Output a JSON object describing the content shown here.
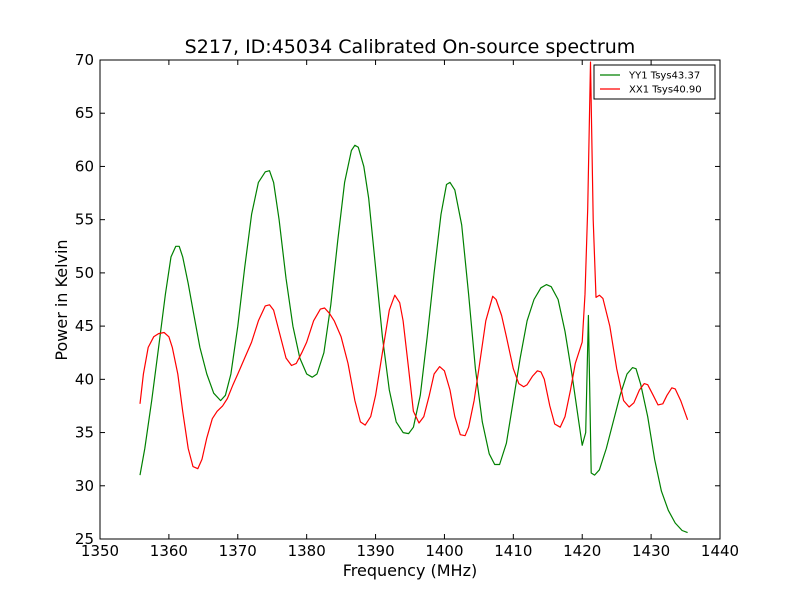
{
  "chart_data": {
    "type": "line",
    "title": "S217, ID:45034 Calibrated On-source spectrum",
    "xlabel": "Frequency (MHz)",
    "ylabel": "Power in Kelvin",
    "xlim": [
      1350,
      1440
    ],
    "ylim": [
      25,
      70
    ],
    "xticks": [
      1350,
      1360,
      1370,
      1380,
      1390,
      1400,
      1410,
      1420,
      1430,
      1440
    ],
    "yticks": [
      25,
      30,
      35,
      40,
      45,
      50,
      55,
      60,
      65,
      70
    ],
    "grid": false,
    "legend_position": "top-right",
    "series": [
      {
        "name": "YY1 Tsys43.37",
        "color": "#008000",
        "x": [
          1355.8,
          1356.5,
          1357.5,
          1358.5,
          1359.5,
          1360.3,
          1361.0,
          1361.5,
          1362.0,
          1362.8,
          1363.5,
          1364.5,
          1365.5,
          1366.5,
          1367.5,
          1368.2,
          1369.0,
          1370.0,
          1371.0,
          1372.0,
          1373.0,
          1374.0,
          1374.6,
          1375.2,
          1376.0,
          1377.0,
          1378.0,
          1379.0,
          1380.0,
          1380.8,
          1381.5,
          1382.5,
          1383.5,
          1384.5,
          1385.5,
          1386.5,
          1387.0,
          1387.5,
          1388.3,
          1389.0,
          1390.0,
          1391.0,
          1392.0,
          1393.0,
          1394.0,
          1394.8,
          1395.5,
          1396.5,
          1397.5,
          1398.5,
          1399.5,
          1400.3,
          1400.8,
          1401.5,
          1402.5,
          1403.5,
          1404.5,
          1405.5,
          1406.5,
          1407.3,
          1408.0,
          1409.0,
          1410.0,
          1411.0,
          1412.0,
          1413.0,
          1414.0,
          1414.8,
          1415.5,
          1416.5,
          1417.5,
          1418.5,
          1419.5,
          1420.0,
          1420.5,
          1420.9,
          1421.3,
          1421.8,
          1422.5,
          1423.5,
          1424.5,
          1425.5,
          1426.5,
          1427.3,
          1427.8,
          1428.5,
          1429.5,
          1430.5,
          1431.5,
          1432.5,
          1433.5,
          1434.5,
          1435.3
        ],
        "values": [
          31.0,
          33.5,
          38.0,
          43.0,
          48.0,
          51.5,
          52.5,
          52.5,
          51.5,
          49.0,
          46.5,
          43.0,
          40.5,
          38.7,
          38.0,
          38.5,
          40.5,
          45.0,
          50.5,
          55.5,
          58.5,
          59.5,
          59.6,
          58.5,
          55.0,
          49.5,
          45.0,
          42.0,
          40.5,
          40.2,
          40.5,
          42.5,
          47.0,
          53.0,
          58.5,
          61.5,
          62.0,
          61.8,
          60.0,
          57.0,
          50.5,
          44.0,
          39.0,
          36.0,
          35.0,
          34.9,
          35.5,
          38.5,
          44.0,
          50.0,
          55.5,
          58.3,
          58.5,
          57.8,
          54.5,
          48.0,
          41.0,
          36.0,
          33.0,
          32.0,
          32.0,
          34.0,
          38.0,
          42.0,
          45.5,
          47.5,
          48.6,
          48.9,
          48.7,
          47.5,
          44.5,
          40.5,
          36.0,
          33.8,
          35.0,
          46.0,
          31.2,
          31.0,
          31.5,
          33.5,
          36.0,
          38.5,
          40.5,
          41.1,
          41.0,
          39.5,
          36.5,
          32.5,
          29.5,
          27.7,
          26.5,
          25.8,
          25.6
        ]
      },
      {
        "name": "XX1 Tsys40.90",
        "color": "#ff0000",
        "x": [
          1355.8,
          1356.3,
          1357.0,
          1357.8,
          1358.5,
          1359.3,
          1360.0,
          1360.5,
          1361.3,
          1362.0,
          1362.8,
          1363.5,
          1364.2,
          1364.8,
          1365.5,
          1366.3,
          1367.0,
          1367.8,
          1368.5,
          1369.3,
          1370.0,
          1371.0,
          1372.0,
          1373.0,
          1374.0,
          1374.6,
          1375.2,
          1376.0,
          1377.0,
          1377.8,
          1378.5,
          1379.3,
          1380.0,
          1381.0,
          1382.0,
          1382.6,
          1383.3,
          1384.0,
          1385.0,
          1386.0,
          1387.0,
          1387.8,
          1388.5,
          1389.3,
          1390.0,
          1391.0,
          1392.0,
          1392.8,
          1393.5,
          1394.0,
          1394.8,
          1395.5,
          1396.3,
          1397.0,
          1397.8,
          1398.5,
          1399.3,
          1400.0,
          1400.8,
          1401.5,
          1402.3,
          1403.0,
          1403.5,
          1404.3,
          1405.0,
          1406.0,
          1407.0,
          1407.5,
          1408.3,
          1409.0,
          1410.0,
          1410.8,
          1411.5,
          1412.0,
          1412.8,
          1413.5,
          1414.0,
          1414.5,
          1415.3,
          1416.0,
          1416.8,
          1417.5,
          1418.3,
          1419.0,
          1420.0,
          1420.4,
          1420.8,
          1421.2,
          1421.6,
          1422.0,
          1422.5,
          1423.0,
          1424.0,
          1425.0,
          1426.0,
          1426.8,
          1427.5,
          1428.3,
          1429.0,
          1429.5,
          1430.3,
          1431.0,
          1431.7,
          1432.3,
          1433.0,
          1433.5,
          1434.3,
          1435.3
        ],
        "values": [
          37.7,
          40.5,
          43.0,
          44.0,
          44.3,
          44.4,
          44.0,
          43.0,
          40.5,
          37.0,
          33.5,
          31.8,
          31.6,
          32.5,
          34.5,
          36.3,
          37.0,
          37.5,
          38.2,
          39.5,
          40.5,
          42.0,
          43.5,
          45.5,
          46.9,
          47.0,
          46.5,
          44.5,
          42.0,
          41.3,
          41.5,
          42.5,
          43.5,
          45.5,
          46.6,
          46.7,
          46.2,
          45.5,
          44.0,
          41.5,
          38.0,
          36.0,
          35.7,
          36.5,
          38.5,
          42.5,
          46.5,
          47.9,
          47.2,
          45.5,
          41.0,
          37.0,
          35.9,
          36.5,
          38.5,
          40.5,
          41.2,
          40.8,
          39.0,
          36.5,
          34.8,
          34.7,
          35.5,
          38.0,
          41.0,
          45.5,
          47.8,
          47.5,
          46.0,
          44.0,
          41.0,
          39.6,
          39.3,
          39.5,
          40.3,
          40.8,
          40.7,
          40.0,
          37.5,
          35.8,
          35.5,
          36.5,
          39.0,
          41.5,
          43.5,
          48.0,
          56.0,
          69.8,
          55.0,
          47.7,
          47.9,
          47.6,
          45.0,
          41.0,
          38.0,
          37.4,
          37.8,
          39.0,
          39.6,
          39.5,
          38.5,
          37.6,
          37.7,
          38.5,
          39.2,
          39.1,
          38.0,
          36.2
        ]
      }
    ]
  }
}
